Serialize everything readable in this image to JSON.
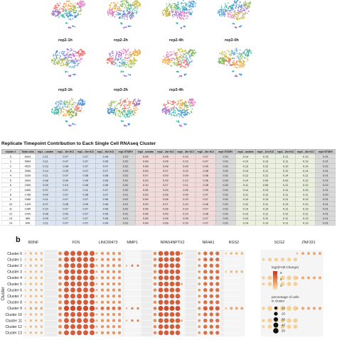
{
  "panel_a": {
    "umaps": [
      {
        "label": "",
        "row": 0,
        "col": 0
      },
      {
        "label": "",
        "row": 0,
        "col": 1
      },
      {
        "label": "",
        "row": 0,
        "col": 2
      },
      {
        "label": "",
        "row": 0,
        "col": 3
      },
      {
        "label": "rep2-1h",
        "row": 1,
        "col": 0
      },
      {
        "label": "rep2-2h",
        "row": 1,
        "col": 1
      },
      {
        "label": "rep2-4h",
        "row": 1,
        "col": 2
      },
      {
        "label": "rep3-0h",
        "row": 1,
        "col": 3
      },
      {
        "label": "rep3-1h",
        "row": 2,
        "col": 0
      },
      {
        "label": "rep3-2h",
        "row": 2,
        "col": 1
      },
      {
        "label": "rep3-4h",
        "row": 2,
        "col": 2
      }
    ],
    "table_title": "Replicate Timepoint Contribution to Each Single Cell RNAseq Cluster",
    "table": {
      "headers": [
        "cluster #",
        "Total cells",
        "rep1 - unstim",
        "rep1 - 1hr KCl",
        "rep1 - 2hr KCl",
        "rep1 - 4hr KCl",
        "rep1 STDEV",
        "rep2 - unstim",
        "rep2 - 1hr KCl",
        "rep2 - 2hr KCl",
        "rep2 - 4hr KCl",
        "rep2 STDEV",
        "rep3 - unstim",
        "rep3 - 1hr KCl",
        "rep3 - 2hr KCl",
        "rep3 - 4hr KCl",
        "rep3 STDEV"
      ],
      "group_colors": [
        "#ffffff",
        "#ffffff",
        "#dbe5f1",
        "#dbe5f1",
        "#dbe5f1",
        "#dbe5f1",
        "#d9d9d9",
        "#f2dcdb",
        "#f2dcdb",
        "#f2dcdb",
        "#f2dcdb",
        "#d9d9d9",
        "#ebf1de",
        "#ebf1de",
        "#ebf1de",
        "#ebf1de",
        "#d9d9d9"
      ],
      "rows": [
        [
          "0",
          "6944",
          "0.11",
          "0.07",
          "0.07",
          "0.06",
          "0.02",
          "0.08",
          "0.08",
          "0.10",
          "0.07",
          "0.01",
          "0.14",
          "0.13",
          "0.11",
          "0.13",
          "0.01"
        ],
        [
          "1",
          "5664",
          "0.11",
          "0.07",
          "0.07",
          "0.06",
          "0.02",
          "0.08",
          "0.08",
          "0.10",
          "0.07",
          "0.01",
          "0.14",
          "0.13",
          "0.11",
          "0.13",
          "0.01"
        ],
        [
          "2",
          "4520",
          "0.10",
          "0.08",
          "0.07",
          "0.07",
          "0.02",
          "0.08",
          "0.08",
          "0.09",
          "0.09",
          "0.01",
          "0.13",
          "0.12",
          "0.10",
          "0.14",
          "0.02"
        ],
        [
          "3",
          "3956",
          "0.14",
          "0.09",
          "0.07",
          "0.07",
          "0.03",
          "0.06",
          "0.07",
          "0.10",
          "0.08",
          "0.01",
          "0.13",
          "0.11",
          "0.12",
          "0.14",
          "0.01"
        ],
        [
          "4",
          "3339",
          "0.11",
          "0.07",
          "0.08",
          "0.08",
          "0.02",
          "0.07",
          "0.09",
          "0.09",
          "0.08",
          "0.01",
          "0.12",
          "0.12",
          "0.14",
          "0.11",
          "0.01"
        ],
        [
          "5",
          "2603",
          "0.08",
          "0.09",
          "0.09",
          "0.06",
          "0.02",
          "0.09",
          "0.09",
          "0.12",
          "0.06",
          "0.02",
          "0.14",
          "0.09",
          "0.09",
          "0.12",
          "0.02"
        ],
        [
          "6",
          "2305",
          "0.09",
          "0.10",
          "0.08",
          "0.06",
          "0.02",
          "0.10",
          "0.07",
          "0.11",
          "0.08",
          "0.02",
          "0.11",
          "0.08",
          "0.11",
          "0.12",
          "0.02"
        ],
        [
          "7",
          "1895",
          "0.07",
          "0.07",
          "0.11",
          "0.07",
          "0.02",
          "0.08",
          "0.09",
          "0.09",
          "0.09",
          "0.01",
          "0.14",
          "0.13",
          "0.11",
          "0.13",
          "0.01"
        ],
        [
          "8",
          "1786",
          "0.09",
          "0.07",
          "0.08",
          "0.07",
          "0.01",
          "0.09",
          "0.08",
          "0.09",
          "0.07",
          "0.01",
          "0.11",
          "0.12",
          "0.11",
          "0.11",
          "0.00"
        ],
        [
          "9",
          "1566",
          "0.11",
          "0.07",
          "0.07",
          "0.06",
          "0.02",
          "0.08",
          "0.08",
          "0.10",
          "0.07",
          "0.01",
          "0.14",
          "0.13",
          "0.11",
          "0.13",
          "0.01"
        ],
        [
          "10",
          "1429",
          "0.07",
          "0.08",
          "0.09",
          "0.06",
          "0.01",
          "0.09",
          "0.07",
          "0.10",
          "0.08",
          "0.01",
          "0.12",
          "0.11",
          "0.13",
          "0.10",
          "0.01"
        ],
        [
          "11",
          "1285",
          "0.10",
          "0.07",
          "0.07",
          "0.06",
          "0.02",
          "0.08",
          "0.08",
          "0.10",
          "0.07",
          "0.01",
          "0.14",
          "0.13",
          "0.11",
          "0.13",
          "0.01"
        ],
        [
          "12",
          "1040",
          "0.08",
          "0.09",
          "0.07",
          "0.06",
          "0.01",
          "0.08",
          "0.09",
          "0.10",
          "0.08",
          "0.01",
          "0.13",
          "0.11",
          "0.12",
          "0.11",
          "0.01"
        ],
        [
          "13",
          "985",
          "0.09",
          "0.07",
          "0.07",
          "0.06",
          "0.01",
          "0.08",
          "0.08",
          "0.09",
          "0.07",
          "0.01",
          "0.13",
          "0.12",
          "0.11",
          "0.13",
          "0.01"
        ],
        [
          "14",
          "846",
          "0.11",
          "0.07",
          "0.07",
          "0.06",
          "0.02",
          "0.08",
          "0.08",
          "0.10",
          "0.07",
          "0.01",
          "0.14",
          "0.13",
          "0.11",
          "0.13",
          "0.01"
        ]
      ]
    }
  },
  "panel_b": {
    "letter": "b",
    "genes": [
      "BDNF",
      "FOS",
      "LINC00473",
      "MMP1",
      "NPAS4",
      "NPTX2",
      "NR4A1",
      "RGS2",
      "SCG2",
      "ZNF331"
    ],
    "clusters": [
      "Cluster 0",
      "Cluster 1",
      "Cluster 2",
      "Cluster 3",
      "Cluster 4",
      "Cluster 5",
      "Cluster 6",
      "Cluster 7",
      "Cluster 8",
      "Cluster 9",
      "Cluster 10",
      "Cluster 11",
      "Cluster 12",
      "Cluster 13"
    ],
    "ylabel": "Cluster",
    "legend": {
      "color_title": "log2(Fold Change)",
      "color_ticks": [
        "9",
        "6",
        "3"
      ],
      "color_low": "#fbe3a1",
      "color_high": "#c7361d",
      "size_title": "percentage of cells in cluster",
      "size_ticks": [
        "10",
        "20",
        "30",
        "40",
        "50"
      ]
    }
  },
  "chart_data": {
    "type": "scatter",
    "subtype": "dotplot",
    "xlabel": "",
    "ylabel": "Cluster",
    "size_unit": "percentage of cells in cluster",
    "color_unit": "log2(Fold Change)",
    "size_legend": [
      10,
      20,
      30,
      40,
      50
    ],
    "color_range": [
      1,
      10
    ],
    "categories_x": [
      "BDNF",
      "FOS",
      "LINC00473",
      "MMP1",
      "NPAS4",
      "NPTX2",
      "NR4A1",
      "RGS2",
      "SCG2",
      "ZNF331"
    ],
    "categories_y": [
      "Cluster 0",
      "Cluster 1",
      "Cluster 2",
      "Cluster 3",
      "Cluster 4",
      "Cluster 5",
      "Cluster 6",
      "Cluster 7",
      "Cluster 8",
      "Cluster 9",
      "Cluster 10",
      "Cluster 11",
      "Cluster 12",
      "Cluster 13"
    ],
    "points": [
      {
        "gene": "BDNF",
        "cluster": "Cluster 0",
        "pct": 6,
        "log2fc": 3
      },
      {
        "gene": "BDNF",
        "cluster": "Cluster 1",
        "pct": 6,
        "log2fc": 3
      },
      {
        "gene": "BDNF",
        "cluster": "Cluster 2",
        "pct": 6,
        "log2fc": 3
      },
      {
        "gene": "BDNF",
        "cluster": "Cluster 3",
        "pct": 6,
        "log2fc": 3
      },
      {
        "gene": "BDNF",
        "cluster": "Cluster 4",
        "pct": 6,
        "log2fc": 3
      },
      {
        "gene": "BDNF",
        "cluster": "Cluster 5",
        "pct": 6,
        "log2fc": 3
      },
      {
        "gene": "BDNF",
        "cluster": "Cluster 6",
        "pct": 6,
        "log2fc": 3
      },
      {
        "gene": "BDNF",
        "cluster": "Cluster 7",
        "pct": 6,
        "log2fc": 3
      },
      {
        "gene": "BDNF",
        "cluster": "Cluster 8",
        "pct": 6,
        "log2fc": 3
      },
      {
        "gene": "BDNF",
        "cluster": "Cluster 9",
        "pct": 8,
        "log2fc": 4
      },
      {
        "gene": "BDNF",
        "cluster": "Cluster 10",
        "pct": 6,
        "log2fc": 3
      },
      {
        "gene": "BDNF",
        "cluster": "Cluster 11",
        "pct": 6,
        "log2fc": 3
      },
      {
        "gene": "BDNF",
        "cluster": "Cluster 12",
        "pct": 6,
        "log2fc": 3
      },
      {
        "gene": "BDNF",
        "cluster": "Cluster 13",
        "pct": 6,
        "log2fc": 3
      },
      {
        "gene": "FOS",
        "cluster": "Cluster 0",
        "pct": 40,
        "log2fc": 8
      },
      {
        "gene": "FOS",
        "cluster": "Cluster 1",
        "pct": 40,
        "log2fc": 8
      },
      {
        "gene": "FOS",
        "cluster": "Cluster 2",
        "pct": 40,
        "log2fc": 8
      },
      {
        "gene": "FOS",
        "cluster": "Cluster 3",
        "pct": 40,
        "log2fc": 8
      },
      {
        "gene": "FOS",
        "cluster": "Cluster 4",
        "pct": 40,
        "log2fc": 8
      },
      {
        "gene": "FOS",
        "cluster": "Cluster 5",
        "pct": 40,
        "log2fc": 8
      },
      {
        "gene": "FOS",
        "cluster": "Cluster 6",
        "pct": 40,
        "log2fc": 8
      },
      {
        "gene": "FOS",
        "cluster": "Cluster 7",
        "pct": 40,
        "log2fc": 8
      },
      {
        "gene": "FOS",
        "cluster": "Cluster 8",
        "pct": 40,
        "log2fc": 8
      },
      {
        "gene": "FOS",
        "cluster": "Cluster 9",
        "pct": 45,
        "log2fc": 9
      },
      {
        "gene": "FOS",
        "cluster": "Cluster 10",
        "pct": 40,
        "log2fc": 8
      },
      {
        "gene": "FOS",
        "cluster": "Cluster 11",
        "pct": 40,
        "log2fc": 8
      },
      {
        "gene": "FOS",
        "cluster": "Cluster 12",
        "pct": 40,
        "log2fc": 8
      },
      {
        "gene": "FOS",
        "cluster": "Cluster 13",
        "pct": 40,
        "log2fc": 8
      },
      {
        "gene": "FOS",
        "cluster": "Cluster 0",
        "pct": 28,
        "log2fc": 6,
        "sub": 1
      },
      {
        "gene": "LINC00473",
        "cluster": "Cluster 0",
        "pct": 12,
        "log2fc": 5
      },
      {
        "gene": "LINC00473",
        "cluster": "Cluster 1",
        "pct": 12,
        "log2fc": 5
      },
      {
        "gene": "LINC00473",
        "cluster": "Cluster 2",
        "pct": 12,
        "log2fc": 5
      },
      {
        "gene": "LINC00473",
        "cluster": "Cluster 3",
        "pct": 12,
        "log2fc": 5
      },
      {
        "gene": "LINC00473",
        "cluster": "Cluster 4",
        "pct": 12,
        "log2fc": 5
      },
      {
        "gene": "LINC00473",
        "cluster": "Cluster 5",
        "pct": 12,
        "log2fc": 5
      },
      {
        "gene": "LINC00473",
        "cluster": "Cluster 6",
        "pct": 12,
        "log2fc": 5
      },
      {
        "gene": "LINC00473",
        "cluster": "Cluster 7",
        "pct": 12,
        "log2fc": 5
      },
      {
        "gene": "LINC00473",
        "cluster": "Cluster 8",
        "pct": 12,
        "log2fc": 5
      },
      {
        "gene": "LINC00473",
        "cluster": "Cluster 9",
        "pct": 18,
        "log2fc": 7
      },
      {
        "gene": "LINC00473",
        "cluster": "Cluster 10",
        "pct": 12,
        "log2fc": 5
      },
      {
        "gene": "LINC00473",
        "cluster": "Cluster 11",
        "pct": 12,
        "log2fc": 5
      },
      {
        "gene": "LINC00473",
        "cluster": "Cluster 12",
        "pct": 12,
        "log2fc": 5
      },
      {
        "gene": "LINC00473",
        "cluster": "Cluster 13",
        "pct": 12,
        "log2fc": 5
      },
      {
        "gene": "MMP1",
        "cluster": "Cluster 2",
        "pct": 5,
        "log2fc": 6
      },
      {
        "gene": "MMP1",
        "cluster": "Cluster 9",
        "pct": 6,
        "log2fc": 6
      },
      {
        "gene": "MMP1",
        "cluster": "Cluster 11",
        "pct": 5,
        "log2fc": 6
      },
      {
        "gene": "NPAS4",
        "cluster": "Cluster 0",
        "pct": 35,
        "log2fc": 8
      },
      {
        "gene": "NPAS4",
        "cluster": "Cluster 1",
        "pct": 35,
        "log2fc": 8
      },
      {
        "gene": "NPAS4",
        "cluster": "Cluster 2",
        "pct": 35,
        "log2fc": 8
      },
      {
        "gene": "NPAS4",
        "cluster": "Cluster 3",
        "pct": 35,
        "log2fc": 8
      },
      {
        "gene": "NPAS4",
        "cluster": "Cluster 4",
        "pct": 35,
        "log2fc": 8
      },
      {
        "gene": "NPAS4",
        "cluster": "Cluster 5",
        "pct": 35,
        "log2fc": 8
      },
      {
        "gene": "NPAS4",
        "cluster": "Cluster 6",
        "pct": 35,
        "log2fc": 8
      },
      {
        "gene": "NPAS4",
        "cluster": "Cluster 7",
        "pct": 35,
        "log2fc": 8
      },
      {
        "gene": "NPAS4",
        "cluster": "Cluster 8",
        "pct": 35,
        "log2fc": 8
      },
      {
        "gene": "NPAS4",
        "cluster": "Cluster 9",
        "pct": 40,
        "log2fc": 9
      },
      {
        "gene": "NPAS4",
        "cluster": "Cluster 10",
        "pct": 35,
        "log2fc": 8
      },
      {
        "gene": "NPAS4",
        "cluster": "Cluster 11",
        "pct": 35,
        "log2fc": 8
      },
      {
        "gene": "NPAS4",
        "cluster": "Cluster 12",
        "pct": 35,
        "log2fc": 8
      },
      {
        "gene": "NPAS4",
        "cluster": "Cluster 13",
        "pct": 35,
        "log2fc": 8
      },
      {
        "gene": "NPTX2",
        "cluster": "Cluster 0",
        "pct": 4,
        "log2fc": 4
      },
      {
        "gene": "NPTX2",
        "cluster": "Cluster 5",
        "pct": 4,
        "log2fc": 4
      },
      {
        "gene": "NPTX2",
        "cluster": "Cluster 11",
        "pct": 4,
        "log2fc": 4
      },
      {
        "gene": "NR4A1",
        "cluster": "Cluster 0",
        "pct": 22,
        "log2fc": 7
      },
      {
        "gene": "NR4A1",
        "cluster": "Cluster 1",
        "pct": 22,
        "log2fc": 7
      },
      {
        "gene": "NR4A1",
        "cluster": "Cluster 2",
        "pct": 22,
        "log2fc": 7
      },
      {
        "gene": "NR4A1",
        "cluster": "Cluster 3",
        "pct": 22,
        "log2fc": 7
      },
      {
        "gene": "NR4A1",
        "cluster": "Cluster 4",
        "pct": 22,
        "log2fc": 7
      },
      {
        "gene": "NR4A1",
        "cluster": "Cluster 5",
        "pct": 22,
        "log2fc": 7
      },
      {
        "gene": "NR4A1",
        "cluster": "Cluster 6",
        "pct": 22,
        "log2fc": 7
      },
      {
        "gene": "NR4A1",
        "cluster": "Cluster 7",
        "pct": 22,
        "log2fc": 7
      },
      {
        "gene": "NR4A1",
        "cluster": "Cluster 8",
        "pct": 22,
        "log2fc": 7
      },
      {
        "gene": "NR4A1",
        "cluster": "Cluster 9",
        "pct": 30,
        "log2fc": 8
      },
      {
        "gene": "NR4A1",
        "cluster": "Cluster 10",
        "pct": 22,
        "log2fc": 7
      },
      {
        "gene": "NR4A1",
        "cluster": "Cluster 11",
        "pct": 22,
        "log2fc": 7
      },
      {
        "gene": "NR4A1",
        "cluster": "Cluster 12",
        "pct": 22,
        "log2fc": 7
      },
      {
        "gene": "NR4A1",
        "cluster": "Cluster 13",
        "pct": 22,
        "log2fc": 7
      },
      {
        "gene": "RGS2",
        "cluster": "Cluster 0",
        "pct": 8,
        "log2fc": 3
      },
      {
        "gene": "RGS2",
        "cluster": "Cluster 3",
        "pct": 8,
        "log2fc": 3
      },
      {
        "gene": "RGS2",
        "cluster": "Cluster 9",
        "pct": 10,
        "log2fc": 4
      },
      {
        "gene": "SCG2",
        "cluster": "Cluster 1",
        "pct": 20,
        "log2fc": 2
      },
      {
        "gene": "SCG2",
        "cluster": "Cluster 4",
        "pct": 30,
        "log2fc": 2
      },
      {
        "gene": "SCG2",
        "cluster": "Cluster 5",
        "pct": 25,
        "log2fc": 2
      },
      {
        "gene": "SCG2",
        "cluster": "Cluster 9",
        "pct": 35,
        "log2fc": 2
      },
      {
        "gene": "SCG2",
        "cluster": "Cluster 11",
        "pct": 30,
        "log2fc": 2
      },
      {
        "gene": "SCG2",
        "cluster": "Cluster 12",
        "pct": 25,
        "log2fc": 2
      },
      {
        "gene": "ZNF331",
        "cluster": "Cluster 0",
        "pct": 10,
        "log2fc": 4
      },
      {
        "gene": "ZNF331",
        "cluster": "Cluster 4",
        "pct": 10,
        "log2fc": 4
      },
      {
        "gene": "ZNF331",
        "cluster": "Cluster 9",
        "pct": 12,
        "log2fc": 4
      }
    ]
  }
}
